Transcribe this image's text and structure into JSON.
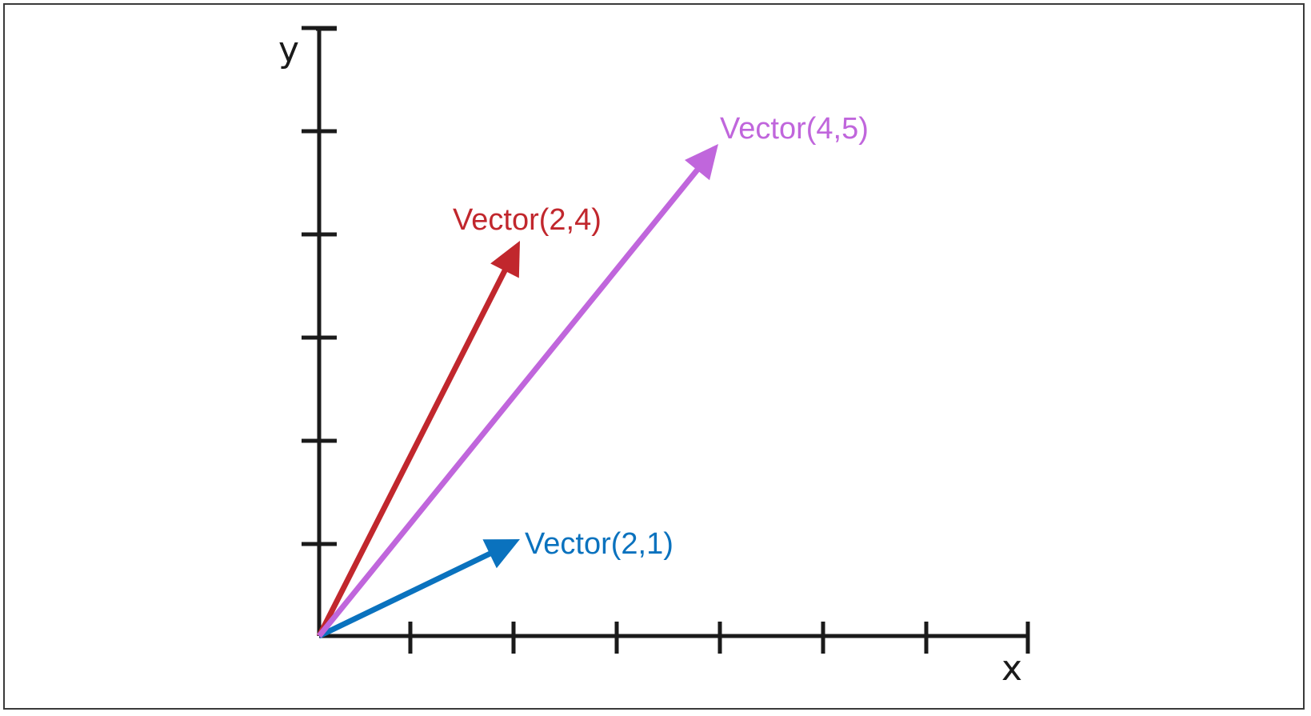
{
  "axes": {
    "x_label": "x",
    "y_label": "y",
    "x_ticks": 7,
    "y_ticks": 6,
    "color": "#1a1a1a"
  },
  "vectors": [
    {
      "label": "Vector(2,1)",
      "x": 2,
      "y": 1,
      "color": "#0a72be"
    },
    {
      "label": "Vector(2,4)",
      "x": 2,
      "y": 4,
      "color": "#c1272d"
    },
    {
      "label": "Vector(4,5)",
      "x": 4,
      "y": 5,
      "color": "#c066dc"
    }
  ]
}
